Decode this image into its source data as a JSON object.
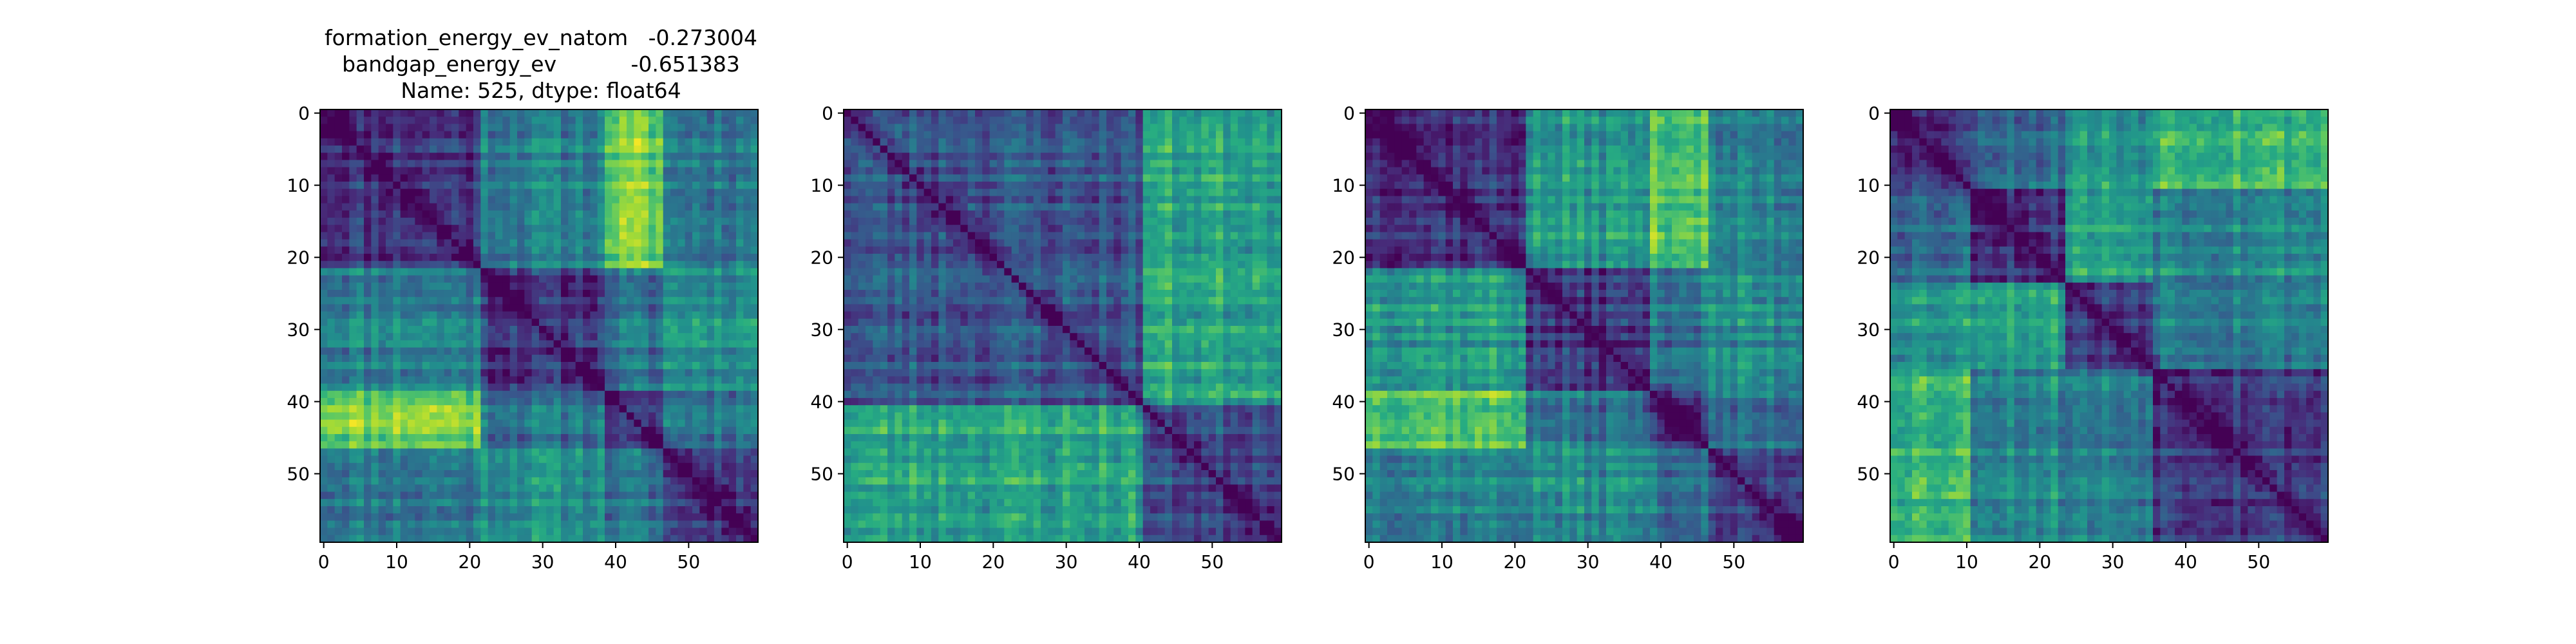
{
  "figure": {
    "title_lines": [
      "formation_energy_ev_natom   -0.273004",
      "bandgap_energy_ev           -0.651383",
      "Name: 525, dtype: float64"
    ]
  },
  "chart_data": [
    {
      "type": "heatmap",
      "panel": 1,
      "matrix_size": 60,
      "colormap": "viridis",
      "value_range": [
        0,
        1
      ],
      "diagonal_value": 0,
      "x_ticks": [
        0,
        10,
        20,
        30,
        40,
        50
      ],
      "y_ticks": [
        0,
        10,
        20,
        30,
        40,
        50
      ],
      "xlim": [
        -0.5,
        59.5
      ],
      "ylim": [
        59.5,
        -0.5
      ],
      "block_boundaries": [
        0,
        22,
        39,
        47,
        60
      ],
      "block_levels": [
        [
          0.18,
          0.45,
          0.8,
          0.42
        ],
        [
          0.45,
          0.18,
          0.38,
          0.52
        ],
        [
          0.8,
          0.38,
          0.18,
          0.4
        ],
        [
          0.42,
          0.52,
          0.4,
          0.2
        ]
      ],
      "noise_seed": 11
    },
    {
      "type": "heatmap",
      "panel": 2,
      "matrix_size": 60,
      "colormap": "viridis",
      "value_range": [
        0,
        1
      ],
      "diagonal_value": 0,
      "x_ticks": [
        0,
        10,
        20,
        30,
        40,
        50
      ],
      "y_ticks": [
        0,
        10,
        20,
        30,
        40,
        50
      ],
      "xlim": [
        -0.5,
        59.5
      ],
      "ylim": [
        59.5,
        -0.5
      ],
      "block_boundaries": [
        0,
        41,
        60
      ],
      "block_levels": [
        [
          0.28,
          0.6
        ],
        [
          0.6,
          0.25
        ]
      ],
      "noise_seed": 23
    },
    {
      "type": "heatmap",
      "panel": 3,
      "matrix_size": 60,
      "colormap": "viridis",
      "value_range": [
        0,
        1
      ],
      "diagonal_value": 0,
      "x_ticks": [
        0,
        10,
        20,
        30,
        40,
        50
      ],
      "y_ticks": [
        0,
        10,
        20,
        30,
        40,
        50
      ],
      "xlim": [
        -0.5,
        59.5
      ],
      "ylim": [
        59.5,
        -0.5
      ],
      "block_boundaries": [
        0,
        22,
        39,
        47,
        60
      ],
      "block_levels": [
        [
          0.18,
          0.55,
          0.75,
          0.45
        ],
        [
          0.55,
          0.18,
          0.4,
          0.48
        ],
        [
          0.75,
          0.4,
          0.18,
          0.38
        ],
        [
          0.45,
          0.48,
          0.38,
          0.2
        ]
      ],
      "noise_seed": 37
    },
    {
      "type": "heatmap",
      "panel": 4,
      "matrix_size": 60,
      "colormap": "viridis",
      "value_range": [
        0,
        1
      ],
      "diagonal_value": 0,
      "x_ticks": [
        0,
        10,
        20,
        30,
        40,
        50
      ],
      "y_ticks": [
        0,
        10,
        20,
        30,
        40,
        50
      ],
      "xlim": [
        -0.5,
        59.5
      ],
      "ylim": [
        59.5,
        -0.5
      ],
      "block_boundaries": [
        0,
        11,
        24,
        36,
        60
      ],
      "block_levels": [
        [
          0.2,
          0.38,
          0.55,
          0.7
        ],
        [
          0.38,
          0.2,
          0.6,
          0.5
        ],
        [
          0.55,
          0.6,
          0.2,
          0.45
        ],
        [
          0.7,
          0.5,
          0.45,
          0.22
        ]
      ],
      "noise_seed": 53
    }
  ]
}
